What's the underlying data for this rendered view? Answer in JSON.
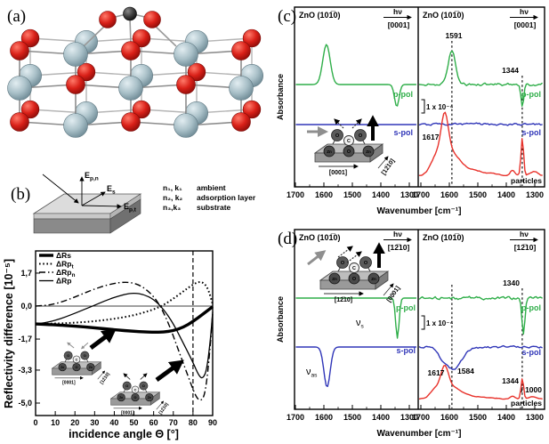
{
  "atoms": {
    "o": "O",
    "c": "C",
    "zn": "Zn"
  },
  "colors": {
    "green": "#2fae49",
    "blue": "#3036b8",
    "red": "#e8322b",
    "zn_sphere": "#a9c0c8",
    "o_sphere": "#d92018",
    "c_sphere": "#3e3e3e"
  },
  "panel_a": {
    "label": "(a)"
  },
  "panel_b": {
    "label": "(b)",
    "schematic": {
      "e": "E",
      "sub_pn": "p,n",
      "sub_s": "s",
      "sub_pt": "p,t",
      "layers": [
        {
          "sym": "n₁, k₁",
          "name": "ambient"
        },
        {
          "sym": "n₂, k₂",
          "name": "adsorption layer"
        },
        {
          "sym": "n₃,k₃",
          "name": "substrate"
        }
      ]
    }
  },
  "panel_c": {
    "label": "(c)"
  },
  "panel_d": {
    "label": "(d)"
  },
  "chart_data": [
    {
      "id": "reflectivity_vs_incidence_angle",
      "type": "line",
      "xlabel": "incidence angle Θ [°]",
      "ylabel": "Reflectivity difference [10⁻⁵]",
      "xlim": [
        0,
        90
      ],
      "ylim": [
        -5.6,
        2.8
      ],
      "xticks": [
        0,
        10,
        20,
        30,
        40,
        50,
        60,
        70,
        80,
        90
      ],
      "yticks": [
        {
          "label": "1,7",
          "value": 1.7
        },
        {
          "label": "0,0",
          "value": 0
        },
        {
          "label": "-1,7",
          "value": -1.7
        },
        {
          "label": "-3,3",
          "value": -3.3
        },
        {
          "label": "-5,0",
          "value": -5.0
        }
      ],
      "dashed_line_x": 80,
      "legend_position": "top-left",
      "series": [
        {
          "name": "ΔRs",
          "sub": "",
          "style": "thick",
          "x": [
            0,
            10,
            20,
            30,
            40,
            50,
            55,
            60,
            65,
            70,
            75,
            80,
            85,
            90
          ],
          "y": [
            -0.92,
            -0.97,
            -1.03,
            -1.12,
            -1.22,
            -1.3,
            -1.33,
            -1.35,
            -1.34,
            -1.27,
            -1.1,
            -0.8,
            -0.42,
            -0.03
          ]
        },
        {
          "name": "ΔRp",
          "sub": "t",
          "style": "dotted",
          "x": [
            0,
            10,
            20,
            30,
            40,
            50,
            60,
            65,
            70,
            75,
            79,
            82,
            84,
            86,
            88,
            90
          ],
          "y": [
            -0.92,
            -0.9,
            -0.86,
            -0.78,
            -0.66,
            -0.48,
            -0.18,
            0.05,
            0.38,
            0.75,
            1.05,
            1.22,
            1.25,
            1.15,
            0.8,
            0.1
          ]
        },
        {
          "name": "ΔRp",
          "sub": "n",
          "style": "dashdot",
          "x": [
            0,
            5,
            10,
            15,
            20,
            25,
            30,
            35,
            40,
            44,
            48,
            52,
            56,
            60,
            64,
            68,
            72,
            76,
            80,
            82,
            84,
            86,
            88,
            90
          ],
          "y": [
            0,
            0.03,
            0.12,
            0.27,
            0.47,
            0.68,
            0.88,
            1.05,
            1.17,
            1.23,
            1.22,
            1.12,
            0.88,
            0.5,
            -0.1,
            -1.0,
            -2.1,
            -3.2,
            -4.3,
            -4.75,
            -4.9,
            -4.6,
            -3.0,
            -0.4
          ]
        },
        {
          "name": "ΔRp",
          "sub": "",
          "style": "thin",
          "x": [
            0,
            5,
            10,
            15,
            20,
            25,
            30,
            35,
            40,
            45,
            50,
            55,
            60,
            65,
            70,
            75,
            80,
            83,
            85,
            87,
            89,
            90
          ],
          "y": [
            -0.92,
            -0.86,
            -0.74,
            -0.57,
            -0.37,
            -0.16,
            0.04,
            0.26,
            0.45,
            0.6,
            0.68,
            0.6,
            0.35,
            -0.15,
            -0.9,
            -1.9,
            -2.9,
            -3.6,
            -3.75,
            -3.3,
            -1.6,
            -0.3
          ]
        }
      ],
      "insets": [
        {
          "dir1": "[0001]",
          "dir2": "[12̅10]"
        },
        {
          "dir1": "[0001]",
          "dir2": "[12̅10]"
        }
      ]
    },
    {
      "id": "ftir_spectra_E_along_0001",
      "type": "line",
      "xlabel": "Wavenumber [cm⁻¹]",
      "ylabel": "Absorbance",
      "xticks": [
        1700,
        1600,
        1500,
        1400,
        1300
      ],
      "x_range": [
        1700,
        1270
      ],
      "panels": {
        "left": {
          "title": "ZnO (101̅0)",
          "hv": "hν",
          "direction": "[0001]",
          "inset": {
            "dir1": "[0001]",
            "dir2": "[12̅10]"
          },
          "curves": [
            {
              "name": "p-pol",
              "color": "green",
              "baseline": 0,
              "noise": 0,
              "peaks": [
                {
                  "center": 1591,
                  "amplitude": 1.0,
                  "width": 13
                },
                {
                  "center": 1344,
                  "amplitude": -0.55,
                  "width": 8
                }
              ]
            },
            {
              "name": "s-pol",
              "color": "blue",
              "baseline": 0,
              "noise": 0,
              "peaks": []
            }
          ]
        },
        "right": {
          "title": "ZnO (101̅0)",
          "hv": "hν",
          "direction": "[0001]",
          "scale_bar": "1 x 10⁻⁴",
          "ref_lines": [
            1591,
            1344
          ],
          "labels": {
            "peak_1591": "1591",
            "peak_1344": "1344",
            "peak_1617": "1617"
          },
          "curves": [
            {
              "name": "p-pol",
              "color": "green",
              "baseline": 0,
              "noise": 0.035,
              "peaks": [
                {
                  "center": 1591,
                  "amplitude": 0.9,
                  "width": 13
                },
                {
                  "center": 1344,
                  "amplitude": -0.6,
                  "width": 5
                }
              ]
            },
            {
              "name": "s-pol",
              "color": "blue",
              "baseline": 0,
              "noise": 0.03,
              "peaks": []
            },
            {
              "name": "particles",
              "color": "red",
              "baseline": 0.05,
              "noise": 0.012,
              "peaks": [
                {
                  "center": 1650,
                  "amplitude": 0.32,
                  "width": 18
                },
                {
                  "center": 1617,
                  "amplitude": 0.95,
                  "width": 13
                },
                {
                  "center": 1597,
                  "amplitude": 0.45,
                  "width": 32
                },
                {
                  "center": 1530,
                  "amplitude": 0.12,
                  "width": 60
                },
                {
                  "center": 1378,
                  "amplitude": 0.12,
                  "width": 9
                },
                {
                  "center": 1344,
                  "amplitude": 0.85,
                  "width": 4.5
                },
                {
                  "center": 1305,
                  "amplitude": 0.1,
                  "width": 14
                }
              ]
            }
          ]
        }
      }
    },
    {
      "id": "ftir_spectra_E_along_1210",
      "type": "line",
      "xlabel": "Wavenumber [cm⁻¹]",
      "ylabel": "Absorbance",
      "xticks": [
        1700,
        1600,
        1500,
        1400,
        1300
      ],
      "x_range": [
        1700,
        1270
      ],
      "panels": {
        "left": {
          "title": "ZnO (101̅0)",
          "hv": "hν",
          "direction": "[12̅10]",
          "inset": {
            "dir1": "[12̅10]",
            "dir2": "[0001]"
          },
          "labels": {
            "nu": "ν",
            "s": "s",
            "as": "as"
          },
          "curves": [
            {
              "name": "p-pol",
              "color": "green",
              "baseline": 0,
              "noise": 0,
              "peaks": [
                {
                  "center": 1342,
                  "amplitude": -1.0,
                  "width": 6
                }
              ]
            },
            {
              "name": "s-pol",
              "color": "blue",
              "baseline": 0,
              "noise": 0,
              "peaks": [
                {
                  "center": 1589,
                  "amplitude": -1.0,
                  "width": 11
                }
              ]
            }
          ]
        },
        "right": {
          "title": "ZnO (101̅0)",
          "hv": "hν",
          "direction": "[12̅10]",
          "scale_bar": "1 x 10⁻⁴",
          "ref_lines": [
            1591,
            1344
          ],
          "labels": {
            "dip_1584": "1584",
            "dip_1340": "1340",
            "peak_1617": "1617",
            "peak_1344": "1344",
            "divisor": "/ 1000"
          },
          "curves": [
            {
              "name": "p-pol",
              "color": "green",
              "baseline": 0,
              "noise": 0.035,
              "peaks": [
                {
                  "center": 1340,
                  "amplitude": -0.9,
                  "width": 5
                }
              ]
            },
            {
              "name": "s-pol",
              "color": "blue",
              "baseline": 0,
              "noise": 0.025,
              "peaks": [
                {
                  "center": 1584,
                  "amplitude": -0.55,
                  "width": 28
                },
                {
                  "center": 1625,
                  "amplitude": -0.18,
                  "width": 16
                }
              ]
            },
            {
              "name": "particles",
              "color": "red",
              "baseline": 0.05,
              "noise": 0.012,
              "peaks": [
                {
                  "center": 1650,
                  "amplitude": 0.32,
                  "width": 18
                },
                {
                  "center": 1617,
                  "amplitude": 0.95,
                  "width": 13
                },
                {
                  "center": 1597,
                  "amplitude": 0.45,
                  "width": 32
                },
                {
                  "center": 1530,
                  "amplitude": 0.12,
                  "width": 60
                },
                {
                  "center": 1378,
                  "amplitude": 0.12,
                  "width": 9
                },
                {
                  "center": 1344,
                  "amplitude": 0.85,
                  "width": 4.5
                },
                {
                  "center": 1305,
                  "amplitude": 0.1,
                  "width": 14
                }
              ]
            }
          ]
        }
      }
    }
  ]
}
